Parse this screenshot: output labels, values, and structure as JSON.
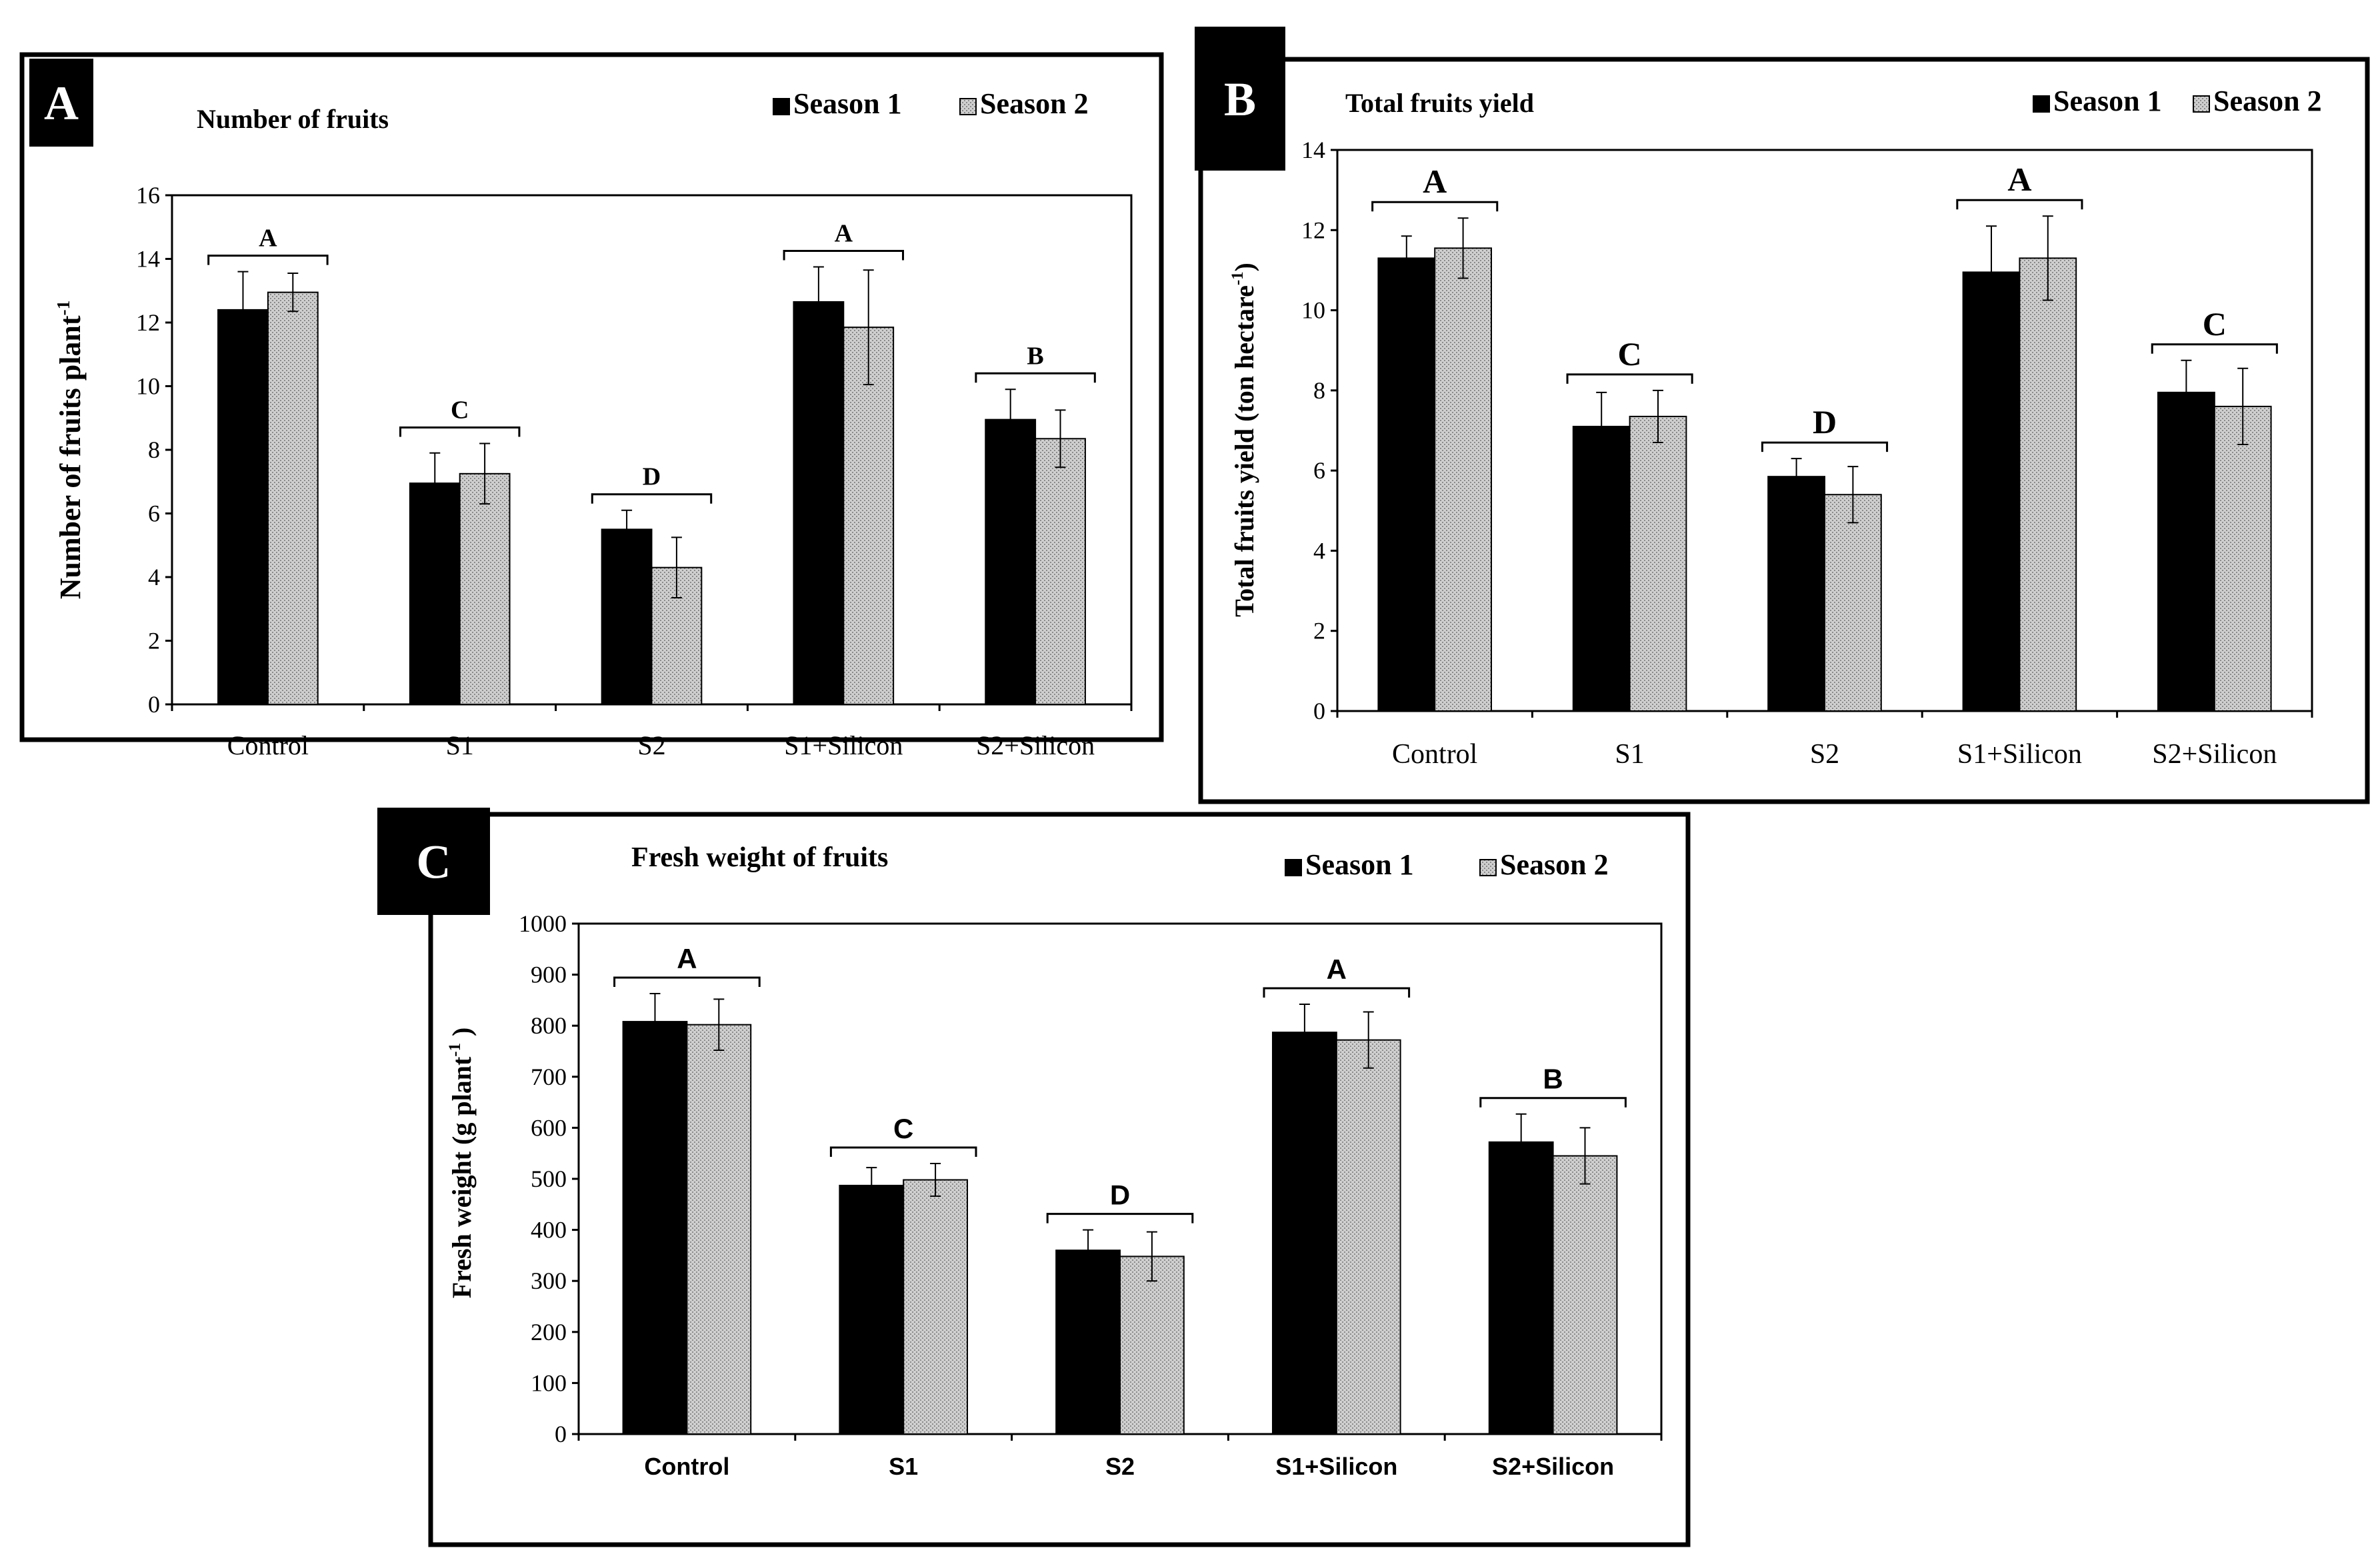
{
  "chart_data": [
    {
      "panel_label": "A",
      "type": "bar",
      "title": "Number of fruits",
      "ylabel": "Number of fruits plant",
      "ylabel_sup": "-1",
      "xlabel": "",
      "ylim": [
        0,
        16
      ],
      "yticks": [
        0,
        2,
        4,
        6,
        8,
        10,
        12,
        14,
        16
      ],
      "categories": [
        "Control",
        "S1",
        "S2",
        "S1+Silicon",
        "S2+Silicon"
      ],
      "series": [
        {
          "name": "Season 1",
          "color": "#000000",
          "values": [
            12.4,
            6.95,
            5.5,
            12.65,
            8.95
          ],
          "errors": [
            1.2,
            0.95,
            0.6,
            1.1,
            0.95
          ]
        },
        {
          "name": "Season 2",
          "color": "#c8c8c8",
          "values": [
            12.95,
            7.25,
            4.3,
            11.85,
            8.35
          ],
          "errors": [
            0.6,
            0.95,
            0.95,
            1.8,
            0.9
          ]
        }
      ],
      "significance": [
        "A",
        "C",
        "D",
        "A",
        "B"
      ]
    },
    {
      "panel_label": "B",
      "type": "bar",
      "title": "Total fruits yield",
      "ylabel": "Total fruits yield  (ton hectare",
      "ylabel_sup": "-1",
      "ylabel_tail": ")",
      "xlabel": "",
      "ylim": [
        0,
        14
      ],
      "yticks": [
        0,
        2,
        4,
        6,
        8,
        10,
        12,
        14
      ],
      "categories": [
        "Control",
        "S1",
        "S2",
        "S1+Silicon",
        "S2+Silicon"
      ],
      "series": [
        {
          "name": "Season 1",
          "color": "#000000",
          "values": [
            11.3,
            7.1,
            5.85,
            10.95,
            7.95
          ],
          "errors": [
            0.55,
            0.85,
            0.45,
            1.15,
            0.8
          ]
        },
        {
          "name": "Season 2",
          "color": "#c8c8c8",
          "values": [
            11.55,
            7.35,
            5.4,
            11.3,
            7.6
          ],
          "errors": [
            0.75,
            0.65,
            0.7,
            1.05,
            0.95
          ]
        }
      ],
      "significance": [
        "A",
        "C",
        "D",
        "A",
        "C"
      ]
    },
    {
      "panel_label": "C",
      "type": "bar",
      "title": "Fresh weight of fruits",
      "ylabel": "Fresh weight (g plant",
      "ylabel_sup": "-1",
      "ylabel_tail": " )",
      "xlabel": "",
      "ylim": [
        0,
        1000
      ],
      "yticks": [
        0,
        100,
        200,
        300,
        400,
        500,
        600,
        700,
        800,
        900,
        1000
      ],
      "categories": [
        "Control",
        "S1",
        "S2",
        "S1+Silicon",
        "S2+Silicon"
      ],
      "series": [
        {
          "name": "Season 1",
          "color": "#000000",
          "values": [
            808,
            487,
            360,
            787,
            572
          ],
          "errors": [
            55,
            35,
            40,
            55,
            55
          ]
        },
        {
          "name": "Season 2",
          "color": "#c8c8c8",
          "values": [
            802,
            498,
            348,
            772,
            545
          ],
          "errors": [
            50,
            32,
            48,
            55,
            55
          ]
        }
      ],
      "significance": [
        "A",
        "C",
        "D",
        "A",
        "B"
      ]
    }
  ]
}
